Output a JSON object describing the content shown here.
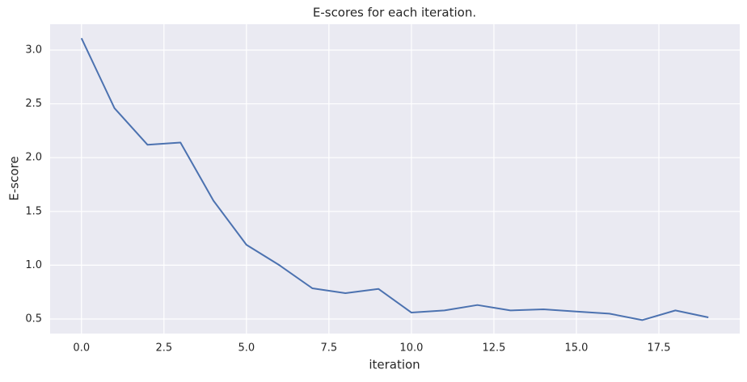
{
  "chart_data": {
    "type": "line",
    "title": "E-scores for each iteration.",
    "x_label": "iteration",
    "y_label": "E-score",
    "x": [
      0,
      1,
      2,
      3,
      4,
      5,
      6,
      7,
      8,
      9,
      10,
      11,
      12,
      13,
      14,
      15,
      16,
      17,
      18,
      19
    ],
    "series": [
      {
        "name": "E-score",
        "color": "#4c72b0",
        "values": [
          3.11,
          2.46,
          2.12,
          2.14,
          1.6,
          1.19,
          1.0,
          0.785,
          0.74,
          0.78,
          0.56,
          0.58,
          0.63,
          0.58,
          0.59,
          0.57,
          0.55,
          0.49,
          0.58,
          0.515
        ]
      }
    ],
    "xlim": [
      -0.95,
      19.95
    ],
    "xticks": [
      {
        "value": 0,
        "label": "0.0"
      },
      2.5,
      {
        "value": 5,
        "label": "5.0"
      },
      7.5,
      {
        "value": 10,
        "label": "10.0"
      },
      12.5,
      {
        "value": 15,
        "label": "15.0"
      },
      17.5
    ],
    "ylim": [
      0.365,
      3.24
    ],
    "yticks": [
      0.5,
      {
        "value": 1,
        "label": "1.0"
      },
      1.5,
      {
        "value": 2,
        "label": "2.0"
      },
      2.5,
      {
        "value": 3,
        "label": "3.0"
      }
    ],
    "grid": true,
    "background": "#eaeaf2"
  }
}
